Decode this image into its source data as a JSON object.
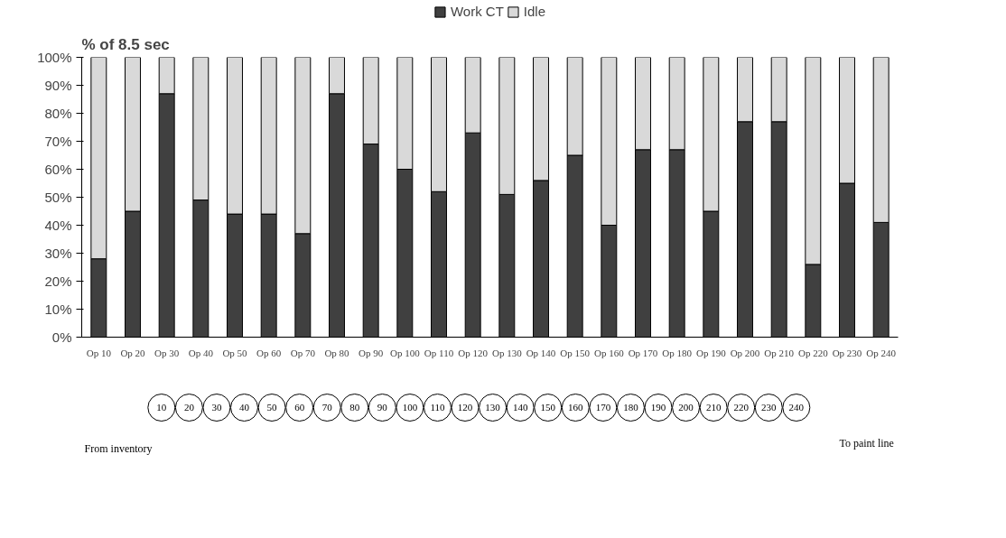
{
  "chart_data": {
    "type": "bar",
    "stacked": true,
    "ylabel": "% of 8.5 sec",
    "categories": [
      "Op 10",
      "Op 20",
      "Op 30",
      "Op 40",
      "Op 50",
      "Op 60",
      "Op 70",
      "Op 80",
      "Op 90",
      "Op 100",
      "Op 110",
      "Op 120",
      "Op 130",
      "Op 140",
      "Op 150",
      "Op 160",
      "Op 170",
      "Op 180",
      "Op 190",
      "Op 200",
      "Op 210",
      "Op 220",
      "Op 230",
      "Op 240"
    ],
    "series": [
      {
        "name": "Work CT",
        "color": "#404040",
        "values": [
          28,
          45,
          87,
          49,
          44,
          44,
          37,
          87,
          69,
          60,
          52,
          73,
          51,
          56,
          65,
          40,
          67,
          67,
          45,
          77,
          77,
          26,
          55,
          41
        ]
      },
      {
        "name": "Idle",
        "color": "#d9d9d9",
        "values": [
          72,
          55,
          13,
          51,
          56,
          56,
          63,
          13,
          31,
          40,
          48,
          27,
          49,
          44,
          35,
          60,
          33,
          33,
          55,
          23,
          23,
          74,
          45,
          59
        ]
      }
    ],
    "ylim": [
      0,
      100
    ],
    "yticks": [
      {
        "value": 0,
        "label": "0%"
      },
      {
        "value": 10,
        "label": "10%"
      },
      {
        "value": 20,
        "label": "20%"
      },
      {
        "value": 30,
        "label": "30%"
      },
      {
        "value": 40,
        "label": "40%"
      },
      {
        "value": 50,
        "label": "50%"
      },
      {
        "value": 60,
        "label": "60%"
      },
      {
        "value": 70,
        "label": "70%"
      },
      {
        "value": 80,
        "label": "80%"
      },
      {
        "value": 90,
        "label": "90%"
      },
      {
        "value": 100,
        "label": "100%"
      }
    ],
    "legend": "top",
    "annotations": [
      "From inventory",
      "To paint line",
      "10",
      "20",
      "30",
      "40",
      "50",
      "60",
      "70",
      "80",
      "90",
      "100",
      "110",
      "120",
      "130",
      "140",
      "150",
      "160",
      "170",
      "180",
      "190",
      "200",
      "210",
      "220",
      "230",
      "240"
    ]
  }
}
